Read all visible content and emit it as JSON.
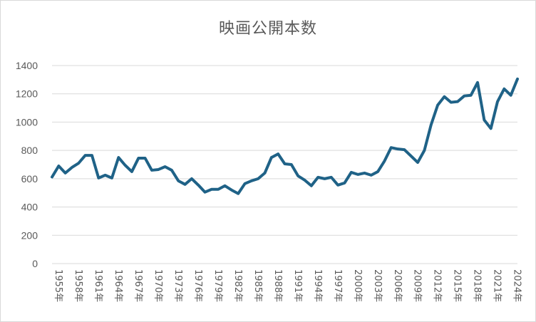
{
  "chart_data": {
    "type": "line",
    "title": "映画公開本数",
    "xlabel": "",
    "ylabel": "",
    "ylim": [
      0,
      1400
    ],
    "yticks": [
      "0",
      "200",
      "400",
      "600",
      "800",
      "1000",
      "1200",
      "1400"
    ],
    "grid": true,
    "legend": "none",
    "line_color": "#1f6287",
    "grid_color": "#d9d9d9",
    "x_tick_labels": [
      "1955年",
      "1958年",
      "1961年",
      "1964年",
      "1967年",
      "1970年",
      "1973年",
      "1976年",
      "1979年",
      "1982年",
      "1985年",
      "1988年",
      "1991年",
      "1994年",
      "1997年",
      "2000年",
      "2003年",
      "2006年",
      "2009年",
      "2012年",
      "2015年",
      "2018年",
      "2021年",
      "2024年"
    ],
    "x": [
      "1955年",
      "1956年",
      "1957年",
      "1958年",
      "1959年",
      "1960年",
      "1961年",
      "1962年",
      "1963年",
      "1964年",
      "1965年",
      "1966年",
      "1967年",
      "1968年",
      "1969年",
      "1970年",
      "1971年",
      "1972年",
      "1973年",
      "1974年",
      "1975年",
      "1976年",
      "1977年",
      "1978年",
      "1979年",
      "1980年",
      "1981年",
      "1982年",
      "1983年",
      "1984年",
      "1985年",
      "1986年",
      "1987年",
      "1988年",
      "1989年",
      "1990年",
      "1991年",
      "1992年",
      "1993年",
      "1994年",
      "1995年",
      "1996年",
      "1997年",
      "1998年",
      "1999年",
      "2000年",
      "2001年",
      "2002年",
      "2003年",
      "2004年",
      "2005年",
      "2006年",
      "2007年",
      "2008年",
      "2009年",
      "2010年",
      "2011年",
      "2012年",
      "2013年",
      "2014年",
      "2015年",
      "2016年",
      "2017年",
      "2018年",
      "2019年",
      "2020年",
      "2021年",
      "2022年",
      "2023年",
      "2024年",
      "2025年"
    ],
    "series": [
      {
        "values": [
          612,
          690,
          640,
          680,
          710,
          765,
          765,
          605,
          625,
          605,
          750,
          695,
          650,
          745,
          745,
          660,
          665,
          685,
          660,
          585,
          560,
          600,
          555,
          505,
          525,
          525,
          550,
          520,
          495,
          565,
          585,
          600,
          640,
          750,
          775,
          705,
          700,
          620,
          590,
          550,
          610,
          600,
          610,
          555,
          570,
          645,
          630,
          640,
          625,
          650,
          725,
          820,
          810,
          805,
          760,
          715,
          800,
          980,
          1120,
          1180,
          1140,
          1145,
          1185,
          1190,
          1280,
          1015,
          955,
          1145,
          1235,
          1190,
          1305
        ]
      }
    ]
  }
}
